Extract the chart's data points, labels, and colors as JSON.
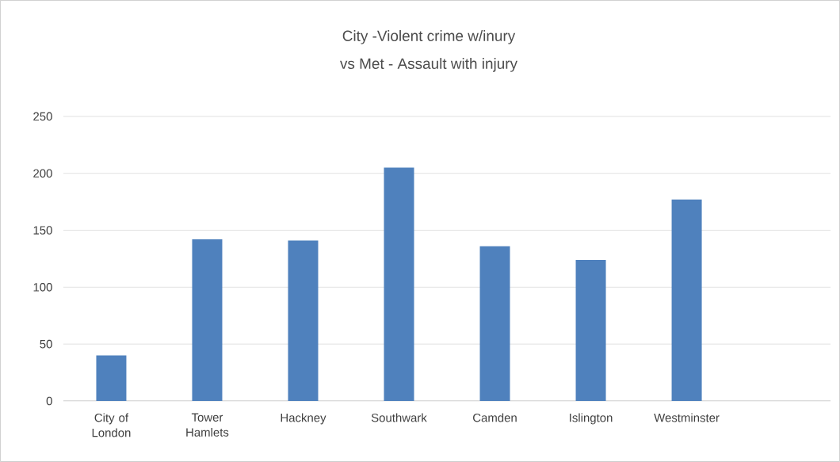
{
  "chart_data": {
    "type": "bar",
    "title": "City -Violent crime w/inury",
    "subtitle": "vs Met - Assault with injury",
    "categories": [
      "City of London",
      "Tower Hamlets",
      "Hackney",
      "Southwark",
      "Camden",
      "Islington",
      "Westminster",
      null
    ],
    "values": [
      40,
      142,
      141,
      205,
      136,
      124,
      177,
      null
    ],
    "color": "#4f81bd",
    "ylim": [
      0,
      250
    ],
    "yticks": [
      0,
      50,
      100,
      150,
      200,
      250
    ],
    "grid": "y"
  }
}
